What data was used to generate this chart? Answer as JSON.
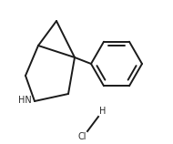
{
  "bg_color": "#ffffff",
  "line_color": "#1a1a1a",
  "line_width": 1.4,
  "text_color": "#2a2a2a",
  "HN_label": "HN",
  "H_label": "H",
  "Cl_label": "Cl",
  "figsize": [
    1.9,
    1.58
  ],
  "dpi": 100,
  "xlim": [
    0,
    190
  ],
  "ylim": [
    0,
    158
  ]
}
